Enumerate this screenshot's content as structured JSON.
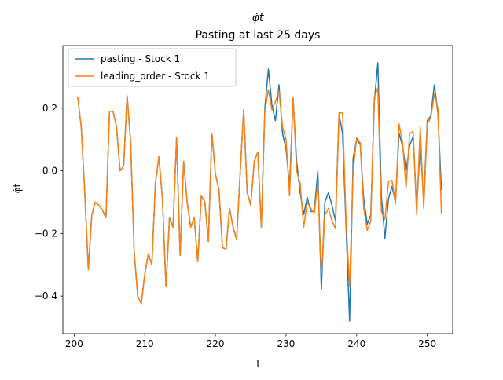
{
  "chart_data": {
    "type": "line",
    "title": "φ̇t",
    "subtitle": "Pasting at last 25 days",
    "xlabel": "T",
    "ylabel": "φ̇t",
    "xlim": [
      198.4,
      253.6
    ],
    "ylim": [
      -0.52,
      0.4
    ],
    "xticks": [
      200,
      210,
      220,
      230,
      240,
      250
    ],
    "yticks": [
      -0.4,
      -0.2,
      0.0,
      0.2
    ],
    "xtick_labels": [
      "200",
      "210",
      "220",
      "230",
      "240",
      "250"
    ],
    "ytick_labels": [
      "−0.4",
      "−0.2",
      "0.0",
      "0.2"
    ],
    "grid": false,
    "legend_position": "top-left",
    "x": [
      200.5,
      201,
      201.5,
      202,
      202.5,
      203,
      203.5,
      204,
      204.5,
      205,
      205.5,
      206,
      206.5,
      207,
      207.5,
      208,
      208.5,
      209,
      209.5,
      210,
      210.5,
      211,
      211.5,
      212,
      212.5,
      213,
      213.5,
      214,
      214.5,
      215,
      215.5,
      216,
      216.5,
      217,
      217.5,
      218,
      218.5,
      219,
      219.5,
      220,
      220.5,
      221,
      221.5,
      222,
      222.5,
      223,
      223.5,
      224,
      224.5,
      225,
      225.5,
      226,
      226.5,
      227,
      227.5,
      228,
      228.5,
      229,
      229.5,
      230,
      230.5,
      231,
      231.5,
      232,
      232.5,
      233,
      233.5,
      234,
      234.5,
      235,
      235.5,
      236,
      236.5,
      237,
      237.5,
      238,
      238.5,
      239,
      239.5,
      240,
      240.5,
      241,
      241.5,
      242,
      242.5,
      243,
      243.5,
      244,
      244.5,
      245,
      245.5,
      246,
      246.5,
      247,
      247.5,
      248,
      248.5,
      249,
      249.5,
      250,
      250.5,
      251,
      251.5,
      252
    ],
    "series": [
      {
        "name": "pasting - Stock 1",
        "color": "#1f77b4",
        "values": [
          0.235,
          0.14,
          -0.07,
          -0.315,
          -0.14,
          -0.1,
          -0.11,
          -0.125,
          -0.15,
          0.19,
          0.19,
          0.14,
          0.0,
          0.015,
          0.24,
          0.09,
          -0.26,
          -0.4,
          -0.425,
          -0.33,
          -0.265,
          -0.3,
          -0.04,
          0.045,
          -0.09,
          -0.37,
          -0.15,
          -0.18,
          0.105,
          -0.27,
          0.03,
          -0.1,
          -0.18,
          -0.15,
          -0.29,
          -0.08,
          -0.1,
          -0.225,
          0.12,
          -0.01,
          -0.06,
          -0.245,
          -0.25,
          -0.12,
          -0.18,
          -0.22,
          -0.01,
          0.195,
          -0.07,
          -0.11,
          0.03,
          0.06,
          -0.18,
          0.2,
          0.325,
          0.21,
          0.16,
          0.275,
          0.12,
          0.07,
          -0.05,
          0.23,
          0.03,
          -0.07,
          -0.14,
          -0.085,
          -0.13,
          -0.13,
          0.0,
          -0.38,
          -0.1,
          -0.07,
          -0.11,
          -0.16,
          0.18,
          0.12,
          -0.18,
          -0.48,
          0.04,
          0.1,
          0.085,
          -0.09,
          -0.17,
          -0.14,
          0.22,
          0.345,
          -0.08,
          -0.215,
          -0.09,
          -0.05,
          -0.1,
          0.12,
          0.08,
          0.0,
          0.08,
          0.11,
          -0.12,
          0.09,
          -0.1,
          0.16,
          0.175,
          0.275,
          0.185,
          -0.06
        ]
      },
      {
        "name": "leading_order - Stock 1",
        "color": "#ff7f0e",
        "values": [
          0.235,
          0.14,
          -0.07,
          -0.315,
          -0.14,
          -0.1,
          -0.11,
          -0.125,
          -0.15,
          0.19,
          0.19,
          0.14,
          0.0,
          0.015,
          0.24,
          0.09,
          -0.26,
          -0.4,
          -0.425,
          -0.33,
          -0.265,
          -0.3,
          -0.04,
          0.045,
          -0.09,
          -0.37,
          -0.15,
          -0.18,
          0.105,
          -0.27,
          0.03,
          -0.1,
          -0.18,
          -0.15,
          -0.29,
          -0.08,
          -0.1,
          -0.225,
          0.12,
          -0.01,
          -0.06,
          -0.245,
          -0.25,
          -0.12,
          -0.18,
          -0.22,
          -0.01,
          0.195,
          -0.07,
          -0.11,
          0.03,
          0.06,
          -0.18,
          0.19,
          0.26,
          0.195,
          0.22,
          0.255,
          0.14,
          0.1,
          -0.08,
          0.235,
          0.0,
          -0.04,
          -0.18,
          -0.1,
          -0.12,
          -0.135,
          -0.04,
          -0.33,
          -0.14,
          -0.12,
          -0.16,
          -0.185,
          0.185,
          0.185,
          -0.16,
          -0.37,
          0.0,
          0.105,
          0.09,
          -0.12,
          -0.19,
          -0.16,
          0.235,
          0.265,
          -0.13,
          -0.155,
          -0.035,
          -0.03,
          -0.105,
          0.15,
          0.09,
          -0.055,
          0.12,
          0.125,
          -0.14,
          0.14,
          -0.12,
          0.15,
          0.17,
          0.245,
          0.2,
          -0.135
        ]
      }
    ]
  }
}
